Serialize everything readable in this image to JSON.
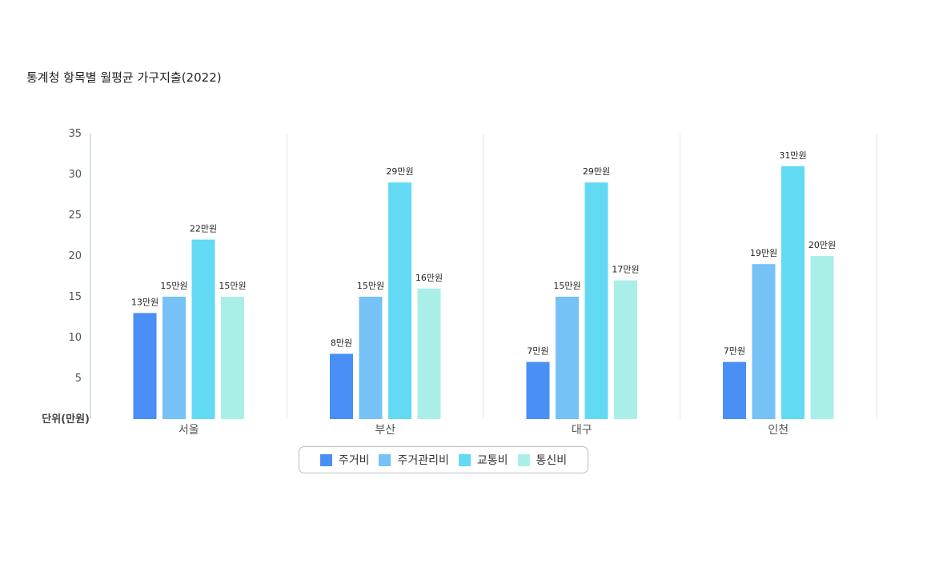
{
  "chart_data": {
    "type": "bar",
    "title": "통계청 항목별 월평균 가구지출(2022)",
    "xlabel": "",
    "ylabel": "단위(만원)",
    "ylim": [
      0,
      35
    ],
    "yticks": [
      5,
      10,
      15,
      20,
      25,
      30,
      35
    ],
    "categories": [
      "서울",
      "부산",
      "대구",
      "인천"
    ],
    "series": [
      {
        "name": "주거비",
        "color": "#4a8ff5",
        "values": [
          13,
          8,
          7,
          7
        ],
        "labels": [
          "13만원",
          "8만원",
          "7만원",
          "7만원"
        ]
      },
      {
        "name": "주거관리비",
        "color": "#76c1f5",
        "values": [
          15,
          15,
          15,
          19
        ],
        "labels": [
          "15만원",
          "15만원",
          "15만원",
          "19만원"
        ]
      },
      {
        "name": "교통비",
        "color": "#63daf3",
        "values": [
          22,
          29,
          29,
          31
        ],
        "labels": [
          "22만원",
          "29만원",
          "29만원",
          "31만원"
        ]
      },
      {
        "name": "통신비",
        "color": "#a9efe8",
        "values": [
          15,
          16,
          17,
          20
        ],
        "labels": [
          "15만원",
          "16만원",
          "17만원",
          "20만원"
        ]
      }
    ],
    "grid": "vertical-category-separators",
    "legend_position": "bottom-center"
  }
}
